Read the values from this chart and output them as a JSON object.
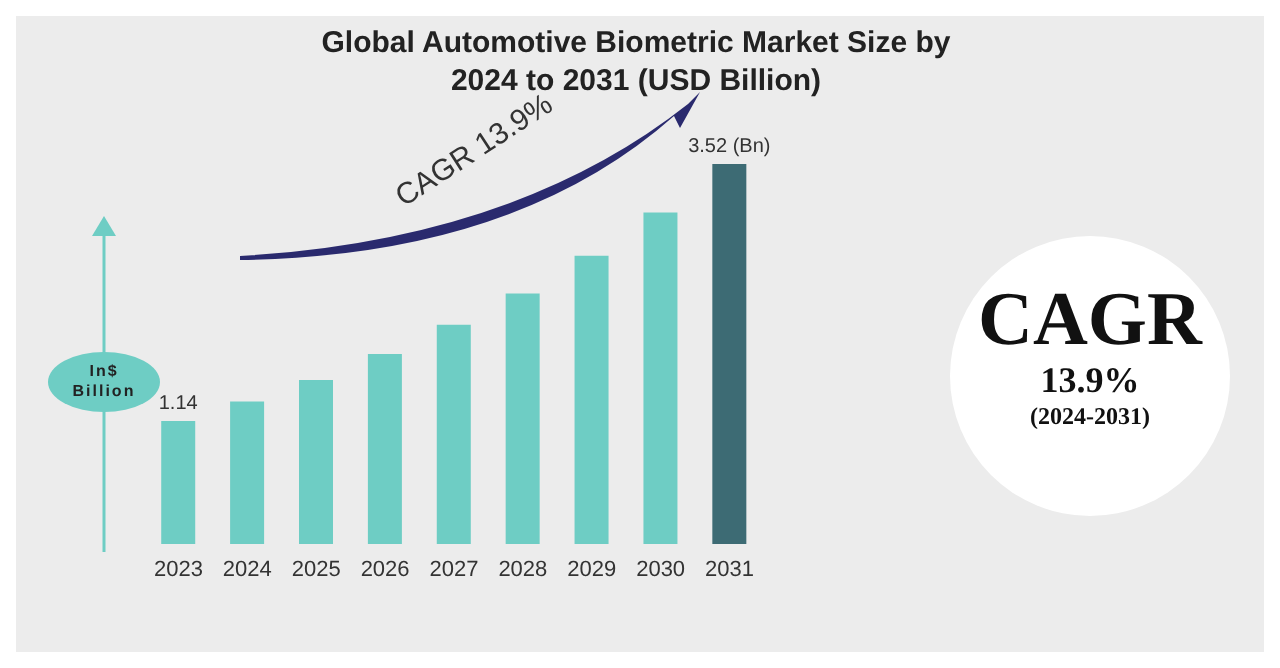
{
  "chart_data": {
    "type": "bar",
    "title": "Global Automotive Biometric Market Size by 2024 to 2031 (USD Billion)",
    "ylabel": "In$ Billion",
    "categories": [
      "2023",
      "2024",
      "2025",
      "2026",
      "2027",
      "2028",
      "2029",
      "2030",
      "2031"
    ],
    "values": [
      1.14,
      1.32,
      1.52,
      1.76,
      2.03,
      2.32,
      2.67,
      3.07,
      3.52
    ],
    "colors": [
      "#6ecdc4",
      "#6ecdc4",
      "#6ecdc4",
      "#6ecdc4",
      "#6ecdc4",
      "#6ecdc4",
      "#6ecdc4",
      "#6ecdc4",
      "#3d6b74"
    ],
    "value_labels": [
      "1.14",
      null,
      null,
      null,
      null,
      null,
      null,
      null,
      "3.52 (Bn)"
    ],
    "annotations": [
      "CAGR 13.9%",
      "CAGR",
      "13.9%",
      "(2024-2031)"
    ]
  }
}
